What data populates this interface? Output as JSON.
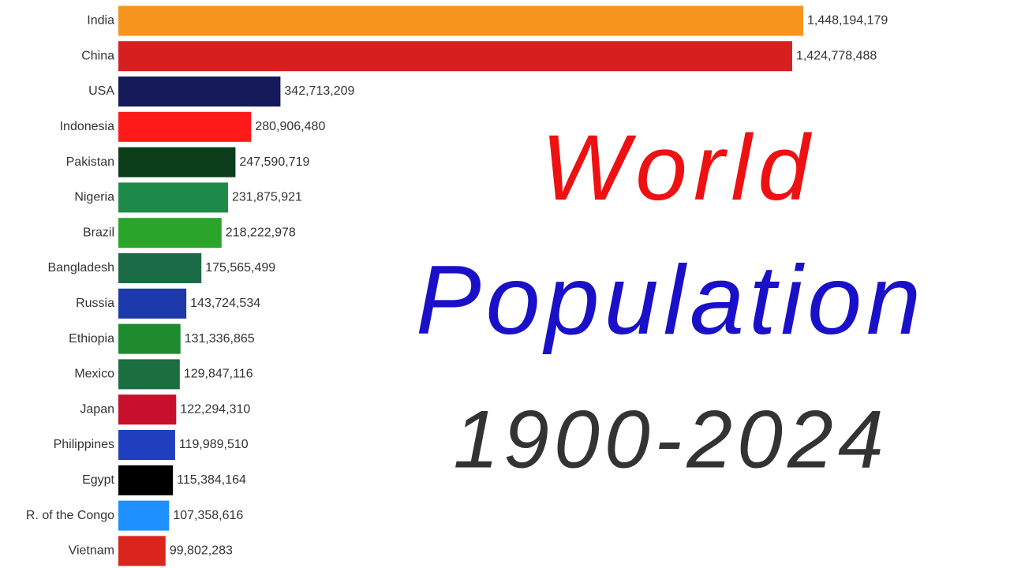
{
  "chart_data": {
    "type": "bar",
    "orientation": "horizontal",
    "title_lines": [
      "World",
      "Population",
      "1900-2024"
    ],
    "categories": [
      "India",
      "China",
      "USA",
      "Indonesia",
      "Pakistan",
      "Nigeria",
      "Brazil",
      "Bangladesh",
      "Russia",
      "Ethiopia",
      "Mexico",
      "Japan",
      "Philippines",
      "Egypt",
      "R. of the Congo",
      "Vietnam"
    ],
    "values": [
      1448194179,
      1424778488,
      342713209,
      280906480,
      247590719,
      231875921,
      218222978,
      175565499,
      143724534,
      131336865,
      129847116,
      122294310,
      119989510,
      115384164,
      107358616,
      99802283
    ],
    "value_labels": [
      "1,448,194,179",
      "1,424,778,488",
      "342,713,209",
      "280,906,480",
      "247,590,719",
      "231,875,921",
      "218,222,978",
      "175,565,499",
      "143,724,534",
      "131,336,865",
      "129,847,116",
      "122,294,310",
      "119,989,510",
      "115,384,164",
      "107,358,616",
      "99,802,283"
    ],
    "colors": [
      "#f7941d",
      "#d71f1f",
      "#14195a",
      "#ff1a1a",
      "#0b3d1a",
      "#1e8a4a",
      "#2aa52a",
      "#1a6b45",
      "#1c3aa9",
      "#1e8b2e",
      "#1a6e40",
      "#c8102e",
      "#1f3fbf",
      "#000000",
      "#1e90ff",
      "#da251d"
    ]
  }
}
